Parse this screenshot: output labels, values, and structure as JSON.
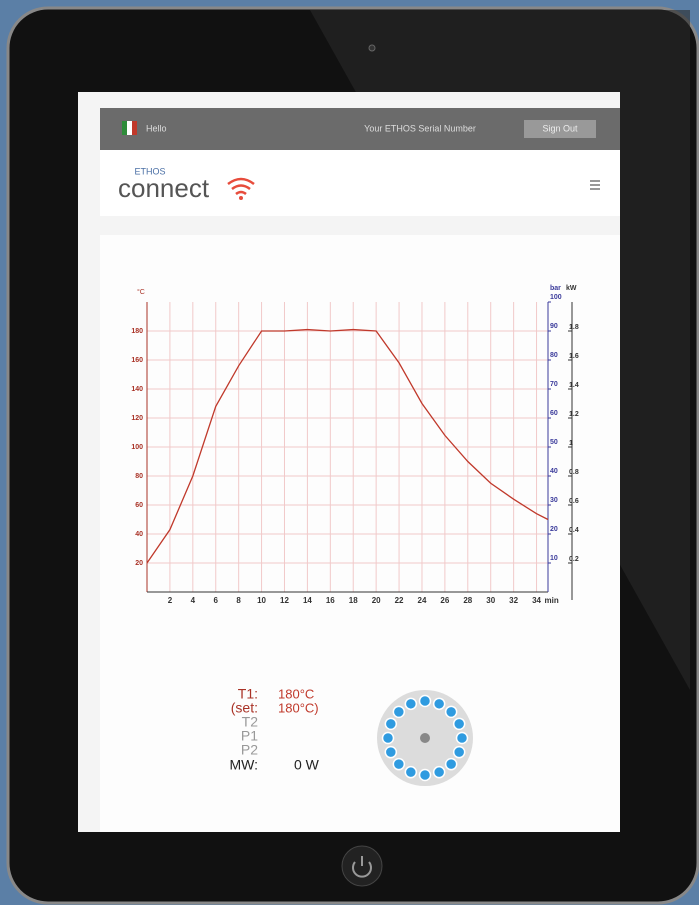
{
  "header": {
    "greeting": "Hello",
    "serial": "Your ETHOS Serial Number",
    "button": "Sign Out",
    "brand_small": "ETHOS",
    "brand": "connect"
  },
  "status": {
    "t1_label": "T1:",
    "t1_value": "180°C",
    "set_label": "(set:",
    "set_value": "180°C)",
    "t2": "T2",
    "p1": "P1",
    "p2": "P2",
    "mw_label": "MW:",
    "mw_value": "0 W"
  },
  "chart_data": {
    "type": "line",
    "y_label": "°C",
    "y2_label": "bar",
    "y3_label": "kW",
    "x_label": "min",
    "x": [
      0,
      2,
      4,
      6,
      8,
      10,
      12,
      14,
      16,
      18,
      20,
      22,
      24,
      26,
      28,
      30,
      32,
      34,
      35
    ],
    "values": [
      20,
      43,
      80,
      128,
      156,
      180,
      180,
      181,
      180,
      181,
      180,
      158,
      130,
      108,
      90,
      75,
      64,
      54,
      50
    ],
    "color": "#c0392b",
    "xlim": [
      0,
      35
    ],
    "xticks": [
      2,
      4,
      6,
      8,
      10,
      12,
      14,
      16,
      18,
      20,
      22,
      24,
      26,
      28,
      30,
      32,
      34
    ],
    "ylim": [
      0,
      200
    ],
    "yticks": [
      20,
      40,
      60,
      80,
      100,
      120,
      140,
      160,
      180
    ],
    "y2lim": [
      0,
      100
    ],
    "y2ticks": [
      10,
      20,
      30,
      40,
      50,
      60,
      70,
      80,
      90,
      100
    ],
    "y3lim": [
      0,
      2
    ],
    "y3ticks": [
      0.2,
      0.4,
      0.6,
      0.8,
      1.0,
      1.2,
      1.4,
      1.6,
      1.8
    ],
    "grid": true
  }
}
